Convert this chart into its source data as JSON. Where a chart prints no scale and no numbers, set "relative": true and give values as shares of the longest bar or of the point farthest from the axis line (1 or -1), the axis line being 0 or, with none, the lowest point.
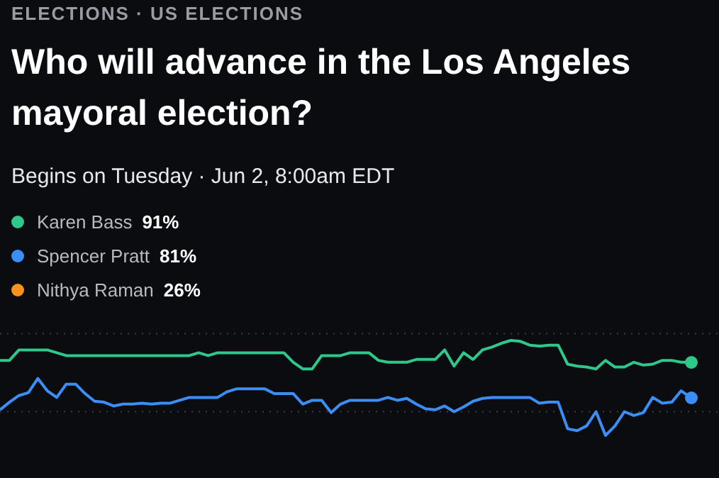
{
  "chart_data": {
    "type": "line",
    "title": "Who will advance in the Los Angeles mayoral election?",
    "subtitle": "Begins on Tuesday · Jun 2, 8:00am EDT",
    "annotations": [
      "ELECTIONS · US ELECTIONS",
      "91%",
      "81%",
      "26%"
    ],
    "relative": true,
    "legend": "top left",
    "line_style": "solid",
    "ref_lines": [
      {
        "axis": "y",
        "value": 1.07,
        "color": "#3a3c44",
        "line_style": "dotted"
      },
      {
        "axis": "y",
        "value": 0.25,
        "color": "#3a3c44",
        "line_style": "dotted"
      }
    ],
    "categories": [
      null,
      null,
      null,
      null,
      null,
      null,
      null,
      null,
      null,
      null,
      null,
      null,
      null,
      null,
      null,
      null,
      null,
      null,
      null,
      null,
      null,
      null,
      null,
      null,
      null,
      null,
      null,
      null,
      null,
      null,
      null,
      null,
      null,
      null,
      null,
      null,
      null,
      null,
      null,
      null,
      null,
      null,
      null,
      null,
      null,
      null,
      null,
      null,
      null,
      null,
      null,
      null,
      null,
      null,
      null,
      null,
      null,
      null,
      null,
      null,
      null,
      null,
      null,
      null,
      null,
      null,
      null,
      null,
      null,
      null,
      null,
      null,
      null,
      null
    ],
    "series": [
      {
        "name": "Karen Bass",
        "color": "#2ec88a",
        "values": [
          0.79,
          0.79,
          0.9,
          0.9,
          0.9,
          0.9,
          0.87,
          0.84,
          0.84,
          0.84,
          0.84,
          0.84,
          0.84,
          0.84,
          0.84,
          0.84,
          0.84,
          0.84,
          0.84,
          0.84,
          0.84,
          0.87,
          0.84,
          0.87,
          0.87,
          0.87,
          0.87,
          0.87,
          0.87,
          0.87,
          0.87,
          0.77,
          0.7,
          0.7,
          0.84,
          0.84,
          0.84,
          0.87,
          0.87,
          0.87,
          0.79,
          0.77,
          0.77,
          0.77,
          0.8,
          0.8,
          0.8,
          0.9,
          0.73,
          0.87,
          0.8,
          0.9,
          0.93,
          0.97,
          1,
          0.99,
          0.95,
          0.94,
          0.95,
          0.95,
          0.75,
          0.73,
          0.72,
          0.7,
          0.79,
          0.72,
          0.72,
          0.77,
          0.74,
          0.75,
          0.79,
          0.79,
          0.77,
          0.77
        ]
      },
      {
        "name": "Spencer Pratt",
        "color": "#3b8ef5",
        "values": [
          0.27,
          0.35,
          0.42,
          0.45,
          0.6,
          0.47,
          0.4,
          0.54,
          0.54,
          0.44,
          0.36,
          0.35,
          0.31,
          0.33,
          0.33,
          0.34,
          0.33,
          0.34,
          0.34,
          0.37,
          0.4,
          0.4,
          0.4,
          0.4,
          0.46,
          0.49,
          0.49,
          0.49,
          0.49,
          0.44,
          0.44,
          0.44,
          0.33,
          0.37,
          0.37,
          0.24,
          0.33,
          0.37,
          0.37,
          0.37,
          0.37,
          0.4,
          0.37,
          0.39,
          0.33,
          0.28,
          0.27,
          0.31,
          0.25,
          0.3,
          0.36,
          0.39,
          0.4,
          0.4,
          0.4,
          0.4,
          0.4,
          0.34,
          0.35,
          0.35,
          0.07,
          0.05,
          0.1,
          0.25,
          0,
          0.1,
          0.25,
          0.21,
          0.24,
          0.4,
          0.34,
          0.35,
          0.47,
          0.4
        ]
      },
      {
        "name": "Nithya Raman",
        "color": "#f7931a",
        "values": [
          null,
          null,
          null,
          null,
          null,
          null,
          null,
          null,
          null,
          null,
          null,
          null,
          null,
          null,
          null,
          null,
          null,
          null,
          null,
          null,
          null,
          null,
          null,
          null,
          null,
          null,
          null,
          null,
          null,
          null,
          null,
          null,
          null,
          null,
          null,
          null,
          null,
          null,
          null,
          null,
          null,
          null,
          null,
          null,
          null,
          null,
          null,
          null,
          null,
          null,
          null,
          null,
          null,
          null,
          null,
          null,
          null,
          null,
          null,
          null,
          null,
          null,
          null,
          null,
          null,
          null,
          null,
          null,
          null,
          null,
          null,
          null,
          null,
          null
        ]
      }
    ]
  }
}
